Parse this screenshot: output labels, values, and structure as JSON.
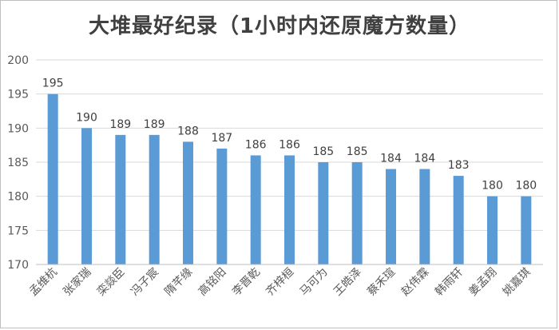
{
  "chart_data": {
    "type": "bar",
    "title": "大堆最好纪录（1小时内还原魔方数量）",
    "xlabel": "",
    "ylabel": "",
    "categories": [
      "孟维杭",
      "张家瑞",
      "栾燚臣",
      "冯子宸",
      "隋芊缘",
      "高铭阳",
      "李晋乾",
      "齐梓桓",
      "马可为",
      "王皓泽",
      "蔡禾瑄",
      "赵伟霖",
      "韩雨轩",
      "姜孟翔",
      "姚嘉琪"
    ],
    "values": [
      195,
      190,
      189,
      189,
      188,
      187,
      186,
      186,
      185,
      185,
      184,
      184,
      183,
      180,
      180
    ],
    "ylim": [
      170,
      200
    ],
    "yticks": [
      "170",
      "175",
      "180",
      "185",
      "190",
      "195",
      "200"
    ],
    "grid": true,
    "bar_color": "#5b9bd5",
    "legend": "none"
  }
}
